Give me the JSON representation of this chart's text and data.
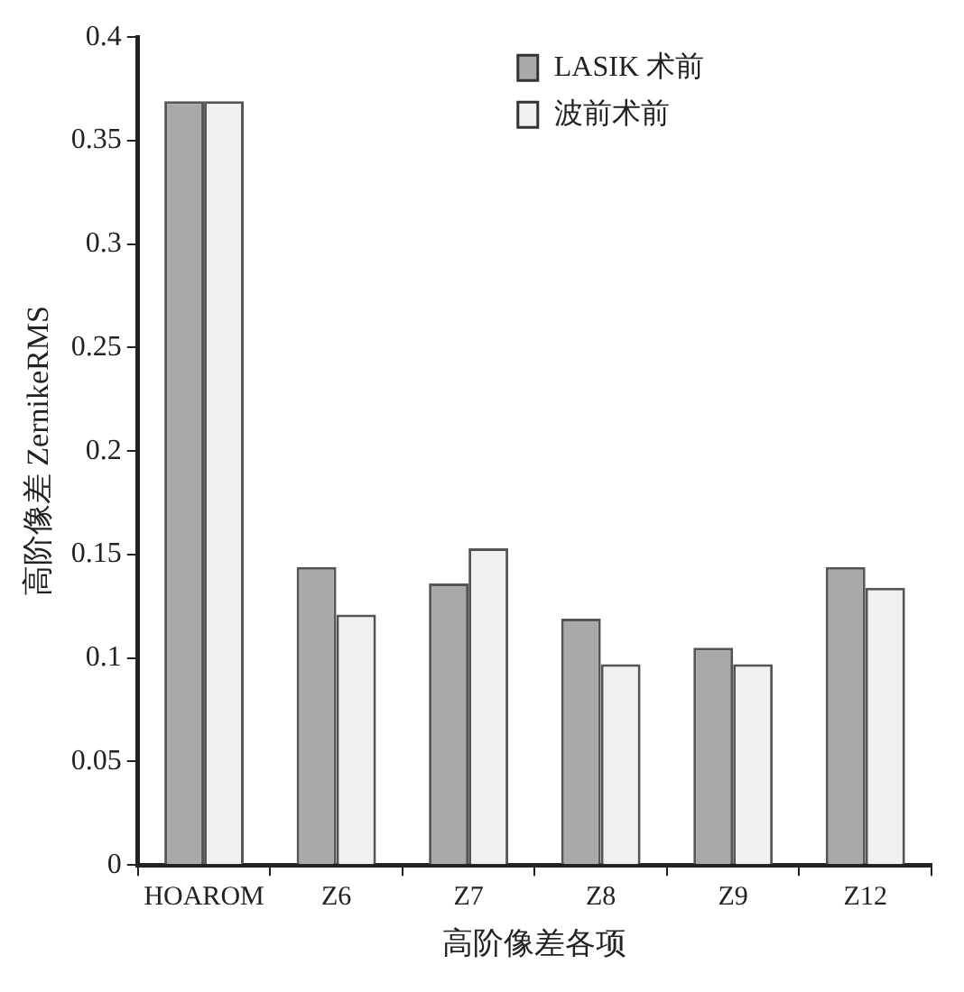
{
  "chart_data": {
    "type": "bar",
    "xlabel": "高阶像差各项",
    "ylabel": "高阶像差 ZernikeRMS",
    "categories": [
      "HOAROM",
      "Z6",
      "Z7",
      "Z8",
      "Z9",
      "Z12"
    ],
    "series": [
      {
        "name": "LASIK 术前",
        "color": "#a9a9a9",
        "values": [
          0.369,
          0.144,
          0.136,
          0.119,
          0.105,
          0.144
        ]
      },
      {
        "name": "波前术前",
        "color": "#f0f0f0",
        "values": [
          0.369,
          0.121,
          0.153,
          0.097,
          0.097,
          0.134
        ]
      }
    ],
    "ylim": [
      0,
      0.4
    ],
    "yticks": [
      0,
      0.05,
      0.1,
      0.15,
      0.2,
      0.25,
      0.3,
      0.35,
      0.4
    ],
    "grid": false,
    "legend": "top right"
  }
}
